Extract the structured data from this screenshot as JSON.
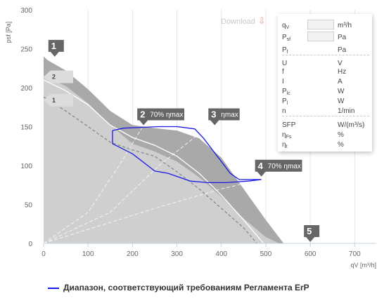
{
  "download_label": "Download",
  "chart_data": {
    "type": "line",
    "xlabel": "qV [m³/h]",
    "ylabel": "psf [Pa]",
    "xlim": [
      0,
      720
    ],
    "ylim": [
      0,
      300
    ],
    "x_ticks": [
      "0",
      "100",
      "200",
      "300",
      "400",
      "500",
      "600",
      "700"
    ],
    "y_ticks": [
      "0",
      "50",
      "100",
      "150",
      "200",
      "250",
      "300"
    ],
    "grid": "vertical",
    "outer_area": [
      [
        0,
        240
      ],
      [
        10,
        235
      ],
      [
        50,
        222
      ],
      [
        100,
        198
      ],
      [
        150,
        170
      ],
      [
        200,
        152
      ],
      [
        250,
        148
      ],
      [
        300,
        145
      ],
      [
        350,
        135
      ],
      [
        400,
        110
      ],
      [
        450,
        70
      ],
      [
        500,
        30
      ],
      [
        540,
        0
      ],
      [
        0,
        0
      ]
    ],
    "inner_area": [
      [
        0,
        215
      ],
      [
        50,
        202
      ],
      [
        100,
        180
      ],
      [
        150,
        152
      ],
      [
        200,
        128
      ],
      [
        250,
        118
      ],
      [
        300,
        105
      ],
      [
        350,
        85
      ],
      [
        400,
        60
      ],
      [
        450,
        32
      ],
      [
        500,
        8
      ],
      [
        530,
        0
      ],
      [
        0,
        0
      ]
    ],
    "speed_curves": [
      {
        "label": "2",
        "points": [
          [
            0,
            210
          ],
          [
            50,
            196
          ],
          [
            100,
            178
          ],
          [
            150,
            152
          ],
          [
            200,
            136
          ],
          [
            250,
            126
          ],
          [
            300,
            112
          ],
          [
            350,
            90
          ],
          [
            400,
            62
          ],
          [
            450,
            30
          ],
          [
            495,
            0
          ]
        ]
      },
      {
        "label": "1",
        "points": [
          [
            0,
            188
          ],
          [
            50,
            170
          ],
          [
            100,
            150
          ],
          [
            150,
            130
          ],
          [
            200,
            120
          ],
          [
            250,
            112
          ],
          [
            300,
            92
          ],
          [
            350,
            70
          ],
          [
            400,
            45
          ],
          [
            450,
            20
          ],
          [
            480,
            0
          ]
        ]
      }
    ],
    "efficiency_lines": [
      {
        "points": [
          [
            0,
            0
          ],
          [
            100,
            40
          ],
          [
            170,
            100
          ],
          [
            225,
            152
          ]
        ]
      },
      {
        "points": [
          [
            0,
            0
          ],
          [
            150,
            40
          ],
          [
            260,
            100
          ],
          [
            370,
            150
          ],
          [
            400,
            156
          ]
        ]
      },
      {
        "points": [
          [
            0,
            0
          ],
          [
            250,
            45
          ],
          [
            400,
            70
          ],
          [
            490,
            82
          ]
        ]
      }
    ],
    "erp_range": {
      "name": "Диапазон, соответствующий требованиям Регламента ErP",
      "points": [
        [
          155,
          145
        ],
        [
          180,
          148
        ],
        [
          220,
          149
        ],
        [
          260,
          150
        ],
        [
          300,
          150
        ],
        [
          340,
          147
        ],
        [
          360,
          135
        ],
        [
          400,
          105
        ],
        [
          420,
          90
        ],
        [
          440,
          82
        ],
        [
          490,
          82
        ],
        [
          460,
          80
        ],
        [
          410,
          78
        ],
        [
          370,
          78
        ],
        [
          330,
          80
        ],
        [
          300,
          86
        ],
        [
          280,
          90
        ],
        [
          250,
          93
        ],
        [
          200,
          115
        ],
        [
          155,
          128
        ],
        [
          155,
          145
        ]
      ]
    },
    "markers": [
      {
        "label": "1",
        "text": "",
        "x": 25,
        "y": 238
      },
      {
        "label": "2",
        "text": "70% ηmax",
        "x": 225,
        "y": 150
      },
      {
        "label": "3",
        "text": "ηmax",
        "x": 385,
        "y": 150
      },
      {
        "label": "4",
        "text": "70% ηmax",
        "x": 490,
        "y": 84
      },
      {
        "label": "5",
        "text": "",
        "x": 600,
        "y": 0
      }
    ],
    "curve_labels": [
      {
        "label": "2",
        "y": 214
      },
      {
        "label": "1",
        "y": 184
      }
    ],
    "colors": {
      "outer": "#a9a9a9",
      "inner": "#cfcfcf",
      "speed": "#ffffff",
      "efficiency": "#f4f4f4",
      "erp": "#1a1ae6",
      "marker": "#666666"
    }
  },
  "panel": {
    "rows": [
      {
        "label": "q",
        "sub": "V",
        "unit": "m³/h",
        "input": true
      },
      {
        "label": "P",
        "sub": "sf",
        "unit": "Pa",
        "input": true
      },
      {
        "label": "P",
        "sub": "f",
        "unit": "Pa",
        "input": false
      },
      {
        "label": "U",
        "sub": "",
        "unit": "V",
        "input": false
      },
      {
        "label": "f",
        "sub": "",
        "unit": "Hz",
        "input": false
      },
      {
        "label": "I",
        "sub": "",
        "unit": "A",
        "input": false
      },
      {
        "label": "P",
        "sub": "lc",
        "unit": "W",
        "input": false
      },
      {
        "label": "P",
        "sub": "l",
        "unit": "W",
        "input": false
      },
      {
        "label": "n",
        "sub": "",
        "unit": "1/min",
        "input": false
      },
      {
        "label": "SFP",
        "sub": "",
        "unit": "W/(m³/s)",
        "input": false
      },
      {
        "label": "η",
        "sub": "Fs",
        "unit": "%",
        "input": false
      },
      {
        "label": "η",
        "sub": "t",
        "unit": "%",
        "input": false
      }
    ]
  },
  "legend_label": "Диапазон, соответствующий требованиям Регламента ErP"
}
